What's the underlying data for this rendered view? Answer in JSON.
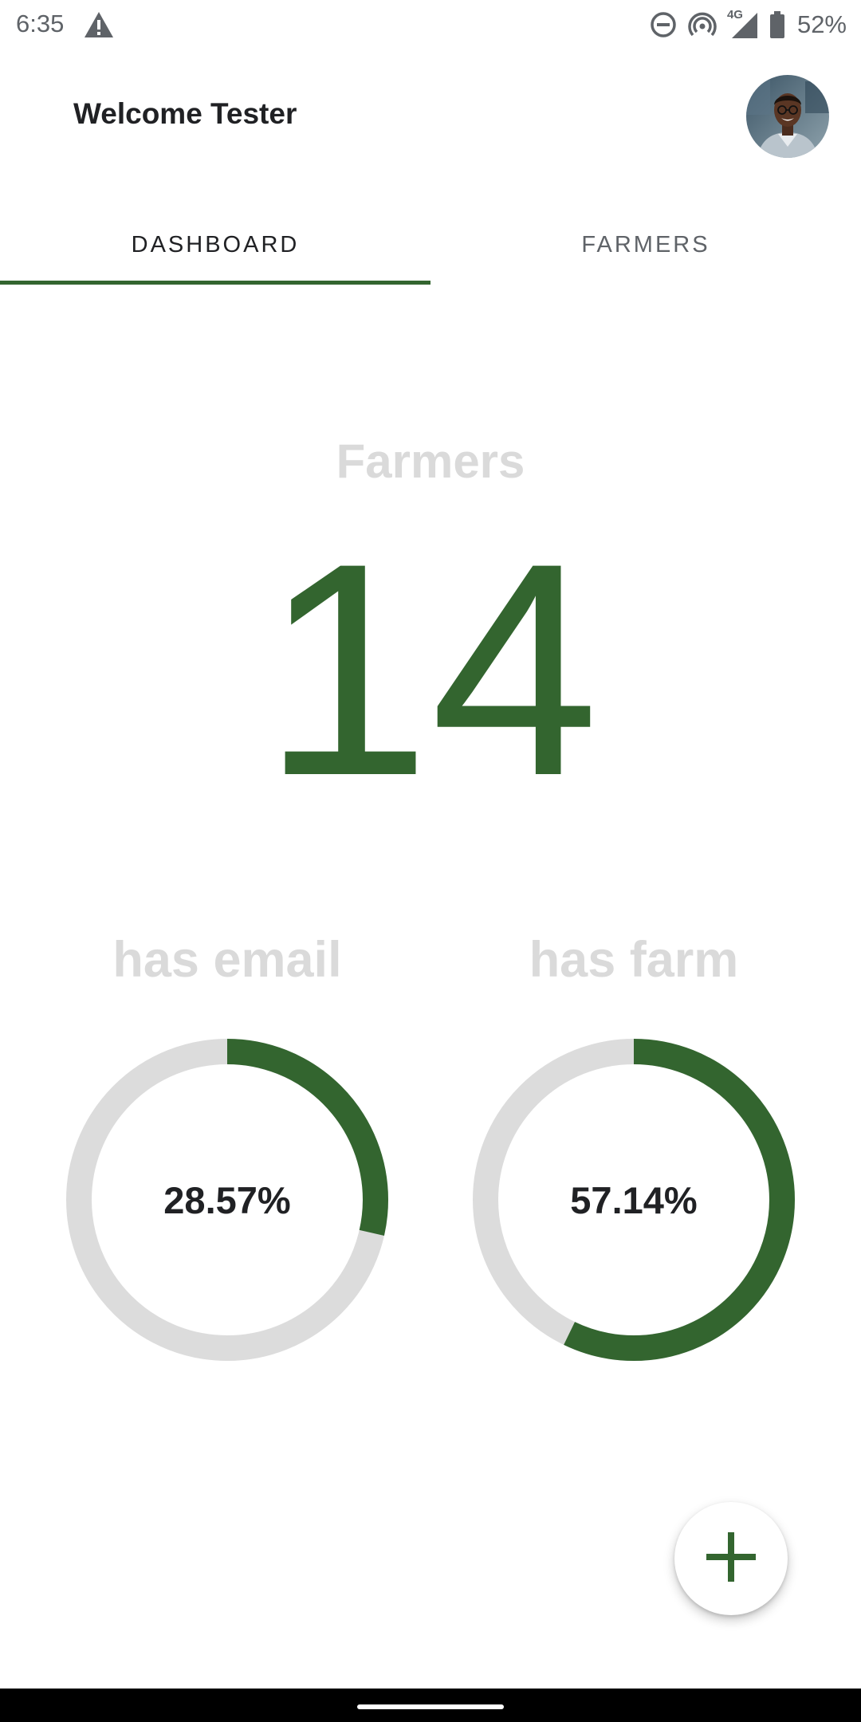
{
  "status_bar": {
    "time": "6:35",
    "network": "4G",
    "battery_percent": "52%",
    "icons": [
      "warning-icon",
      "do-not-disturb-icon",
      "hotspot-icon",
      "cell-signal-icon",
      "battery-icon"
    ]
  },
  "header": {
    "welcome_text": "Welcome Tester",
    "avatar": "user-avatar"
  },
  "tabs": [
    {
      "label": "DASHBOARD",
      "selected": true
    },
    {
      "label": "FARMERS",
      "selected": false
    }
  ],
  "dashboard": {
    "farmers_title": "Farmers",
    "farmers_count": "14",
    "stats": [
      {
        "label": "has email",
        "percent_text": "28.57%",
        "fraction": 0.2857
      },
      {
        "label": "has farm",
        "percent_text": "57.14%",
        "fraction": 0.5714
      }
    ]
  },
  "fab": {
    "icon": "plus-icon"
  },
  "colors": {
    "accent": "#33652f",
    "muted_text": "#dadada",
    "ring_track": "#dcdcdc"
  }
}
